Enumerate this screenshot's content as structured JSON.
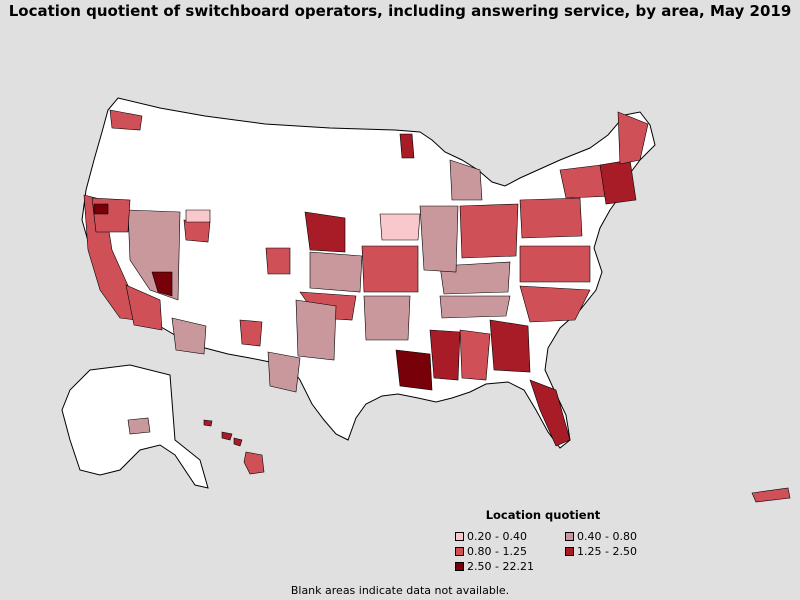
{
  "title": "Location quotient of switchboard operators, including answering service, by area, May 2019",
  "legend": {
    "title": "Location quotient",
    "items": [
      {
        "label": "0.20 - 0.40",
        "color": "#f8c8cc"
      },
      {
        "label": "0.40 - 0.80",
        "color": "#c8989c"
      },
      {
        "label": "0.80 - 1.25",
        "color": "#d05058"
      },
      {
        "label": "1.25 - 2.50",
        "color": "#a81c28"
      },
      {
        "label": "2.50 - 22.21",
        "color": "#780008"
      }
    ]
  },
  "note": "Blank areas indicate data not available."
}
